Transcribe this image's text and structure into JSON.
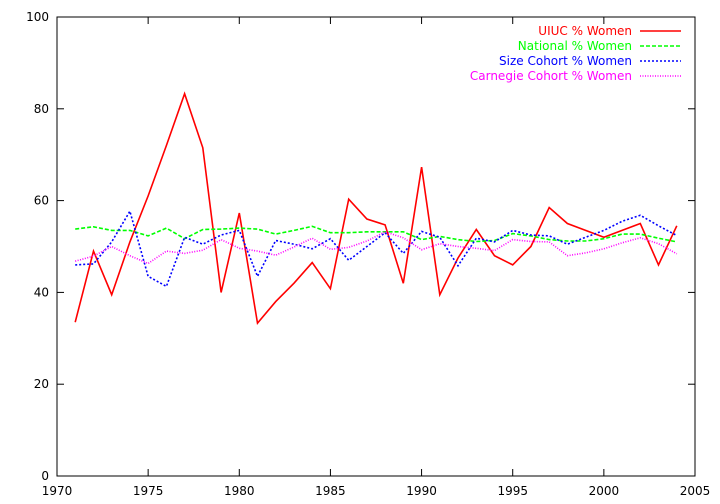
{
  "chart_data": {
    "type": "line",
    "title": "",
    "xlabel": "",
    "ylabel": "",
    "xlim": [
      1970,
      2005
    ],
    "ylim": [
      0,
      100
    ],
    "xticks": [
      1970,
      1975,
      1980,
      1985,
      1990,
      1995,
      2000,
      2005
    ],
    "yticks": [
      0,
      20,
      40,
      60,
      80,
      100
    ],
    "grid": false,
    "legend_position": "top-right",
    "x": [
      1971,
      1972,
      1973,
      1974,
      1975,
      1976,
      1977,
      1978,
      1979,
      1980,
      1981,
      1982,
      1983,
      1984,
      1985,
      1986,
      1987,
      1988,
      1989,
      1990,
      1991,
      1992,
      1993,
      1994,
      1995,
      1996,
      1997,
      1998,
      1999,
      2000,
      2001,
      2002,
      2003,
      2004
    ],
    "series": [
      {
        "name": "UIUC % Women",
        "color": "#ff0000",
        "dash": "solid",
        "values": [
          33.5,
          49,
          39.5,
          51,
          61,
          72,
          83.3,
          71.5,
          40,
          57.3,
          33.3,
          38,
          42,
          46.5,
          40.8,
          60.3,
          56,
          54.7,
          42,
          67.3,
          39.5,
          47.5,
          53.7,
          48,
          46,
          50,
          58.5,
          55,
          53.5,
          52,
          53.5,
          55,
          46,
          54.5
        ]
      },
      {
        "name": "National % Women",
        "color": "#00ff00",
        "dash": "dashed",
        "values": [
          53.8,
          54.3,
          53.5,
          53.5,
          52.3,
          54,
          51.7,
          53.7,
          53.8,
          54,
          53.8,
          52.7,
          53.5,
          54.4,
          53,
          53,
          53.2,
          53.2,
          53.2,
          51.5,
          52.2,
          51.5,
          51.1,
          51.3,
          52.8,
          52.3,
          51.5,
          51.2,
          51.2,
          51.7,
          52.7,
          52.7,
          51.8,
          51
        ]
      },
      {
        "name": "Size Cohort % Women",
        "color": "#0000ff",
        "dash": "dotted",
        "values": [
          46,
          46.2,
          51,
          57.7,
          43.5,
          41.3,
          52,
          50.5,
          52.5,
          53.5,
          43.5,
          51.3,
          50.5,
          49.5,
          51.7,
          47,
          50,
          53,
          48.5,
          53.3,
          52,
          45.8,
          51.8,
          51,
          53.5,
          52.5,
          52.3,
          50.5,
          52,
          53.5,
          55.5,
          56.8,
          54.5,
          52.4
        ]
      },
      {
        "name": "Carnegie Cohort % Women",
        "color": "#ff00ff",
        "dash": "dotted-fine",
        "values": [
          46.8,
          47.9,
          50,
          48,
          46.3,
          49,
          48.5,
          49.2,
          51.5,
          49.6,
          49,
          48.1,
          49.9,
          51.8,
          49.4,
          49.8,
          51.2,
          53.2,
          51.9,
          49.3,
          50.6,
          50,
          49.6,
          49.1,
          51.5,
          51.1,
          51,
          48,
          48.6,
          49.5,
          50.8,
          51.9,
          50.6,
          48.4
        ]
      }
    ]
  }
}
